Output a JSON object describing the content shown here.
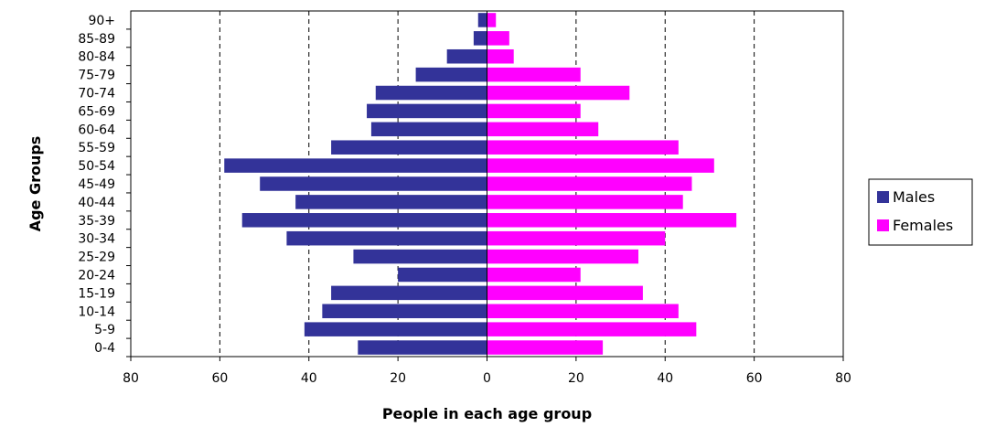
{
  "chart_data": {
    "type": "bar",
    "orientation": "horizontal",
    "layout": "population-pyramid",
    "categories": [
      "0-4",
      "5-9",
      "10-14",
      "15-19",
      "20-24",
      "25-29",
      "30-34",
      "35-39",
      "40-44",
      "45-49",
      "50-54",
      "55-59",
      "60-64",
      "65-69",
      "70-74",
      "75-79",
      "80-84",
      "85-89",
      "90+"
    ],
    "series": [
      {
        "name": "Males",
        "color": "#333399",
        "side": "left",
        "values": [
          29,
          41,
          37,
          35,
          20,
          30,
          45,
          55,
          43,
          51,
          59,
          35,
          26,
          27,
          25,
          16,
          9,
          3,
          2
        ]
      },
      {
        "name": "Females",
        "color": "#ff00ff",
        "side": "right",
        "values": [
          26,
          47,
          43,
          35,
          21,
          34,
          40,
          56,
          44,
          46,
          51,
          43,
          25,
          21,
          32,
          21,
          6,
          5,
          2
        ]
      }
    ],
    "title": "",
    "xlabel": "People in each age group",
    "ylabel": "Age Groups",
    "xlim": [
      -80,
      80
    ],
    "xticks": [
      -80,
      -60,
      -40,
      -20,
      0,
      20,
      40,
      60,
      80
    ],
    "xtick_labels": [
      "80",
      "60",
      "40",
      "20",
      "0",
      "20",
      "40",
      "60",
      "80"
    ],
    "grid": "vertical-dashed",
    "legend_position": "right"
  }
}
